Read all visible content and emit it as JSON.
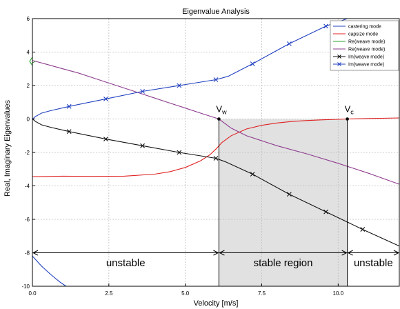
{
  "chart_data": {
    "type": "line",
    "title": "Eigenvalue Analysis",
    "xlabel": "Velocity [m/s]",
    "ylabel": "Real, Imaginary Eigenvalues",
    "xlim": [
      0,
      12
    ],
    "ylim": [
      -10,
      6
    ],
    "x_ticks": [
      0,
      2.5,
      5,
      7.5,
      10
    ],
    "x_tick_labels": [
      "0.0",
      "2.5",
      "5.0",
      "7.5",
      "10.0"
    ],
    "y_ticks": [
      -10,
      -8,
      -6,
      -4,
      -2,
      0,
      2,
      4,
      6
    ],
    "y_tick_labels": [
      "-10",
      "-8",
      "-6",
      "-4",
      "-2",
      "0",
      "2",
      "4",
      "6"
    ],
    "grid": true,
    "legend_position": "top-right",
    "series": [
      {
        "name": "castering mode",
        "color": "#1f3fbf",
        "marker": "none",
        "x": [
          0,
          0.3,
          0.6,
          0.9,
          1.1
        ],
        "y": [
          -8.2,
          -8.8,
          -9.3,
          -9.75,
          -10.0
        ]
      },
      {
        "name": "capsize mode",
        "color": "#e02020",
        "marker": "none",
        "x": [
          0,
          1,
          2,
          3,
          4,
          4.5,
          5,
          5.5,
          5.8,
          6.0,
          6.2,
          6.5,
          7,
          7.5,
          8,
          8.5,
          9,
          9.5,
          10,
          10.3,
          11,
          12
        ],
        "y": [
          -3.45,
          -3.42,
          -3.43,
          -3.42,
          -3.3,
          -3.15,
          -2.9,
          -2.5,
          -2.15,
          -1.8,
          -1.4,
          -1.0,
          -0.6,
          -0.38,
          -0.24,
          -0.15,
          -0.09,
          -0.05,
          -0.02,
          0.0,
          0.03,
          0.06
        ]
      },
      {
        "name": "Re(weave mode)",
        "color": "#2ca02c",
        "marker": "none",
        "x": [
          0,
          0.1
        ],
        "y": [
          3.35,
          3.45
        ]
      },
      {
        "name": "Re(weave mode)",
        "color": "#8e3c8e",
        "marker": "none",
        "x": [
          0,
          0.5,
          1,
          1.5,
          2,
          2.5,
          3,
          3.5,
          4,
          4.5,
          5,
          5.5,
          6.1,
          6.5,
          7,
          8,
          9,
          10,
          11,
          12
        ],
        "y": [
          3.5,
          3.25,
          3.0,
          2.75,
          2.45,
          2.15,
          1.85,
          1.55,
          1.25,
          0.95,
          0.65,
          0.35,
          0.0,
          -0.55,
          -1.0,
          -1.6,
          -2.1,
          -2.65,
          -3.25,
          -3.9
        ]
      },
      {
        "name": "Im(weave mode)",
        "color": "#111111",
        "marker": "x",
        "marker_x": [
          1.2,
          2.4,
          3.6,
          4.8,
          6.0,
          7.2,
          8.4,
          9.6,
          10.8
        ],
        "x": [
          0,
          0.1,
          0.3,
          0.6,
          1.2,
          2.4,
          3.6,
          4.8,
          6.0,
          6.3,
          7.2,
          8.4,
          9.6,
          10.8,
          12
        ],
        "y": [
          0,
          -0.15,
          -0.35,
          -0.5,
          -0.75,
          -1.2,
          -1.6,
          -2.0,
          -2.35,
          -2.55,
          -3.3,
          -4.5,
          -5.55,
          -6.6,
          -7.6
        ]
      },
      {
        "name": "Im(weave mode)",
        "color": "#1f3fbf",
        "marker": "x",
        "marker_x": [
          1.2,
          2.4,
          3.6,
          4.8,
          6.0,
          7.2,
          8.4,
          9.6
        ],
        "x": [
          0,
          0.1,
          0.3,
          0.6,
          1.2,
          2.4,
          3.6,
          4.8,
          6.0,
          6.4,
          7.2,
          8.4,
          9.6,
          10.3
        ],
        "y": [
          0,
          0.15,
          0.35,
          0.5,
          0.75,
          1.2,
          1.65,
          2.0,
          2.35,
          2.55,
          3.3,
          4.5,
          5.55,
          6.0
        ]
      }
    ],
    "annotations": {
      "v_w": {
        "label_main": "V",
        "label_sub": "w",
        "x": 6.1,
        "y": 0
      },
      "v_c": {
        "label_main": "V",
        "label_sub": "c",
        "x": 10.3,
        "y": 0
      },
      "stable_band": {
        "x0": 6.1,
        "x1": 10.3,
        "y0": -10,
        "y1": 0
      },
      "regions": [
        {
          "label": "unstable",
          "x0": 0,
          "x1": 6.1,
          "y": -8,
          "label_x": 3.05,
          "label_y": -8.8
        },
        {
          "label": "stable region",
          "x0": 6.1,
          "x1": 10.3,
          "y": -8,
          "label_x": 8.2,
          "label_y": -8.8
        },
        {
          "label": "unstable",
          "x0": 10.3,
          "x1": 12,
          "y": -8,
          "label_x": 11.15,
          "label_y": -8.8
        }
      ]
    }
  }
}
